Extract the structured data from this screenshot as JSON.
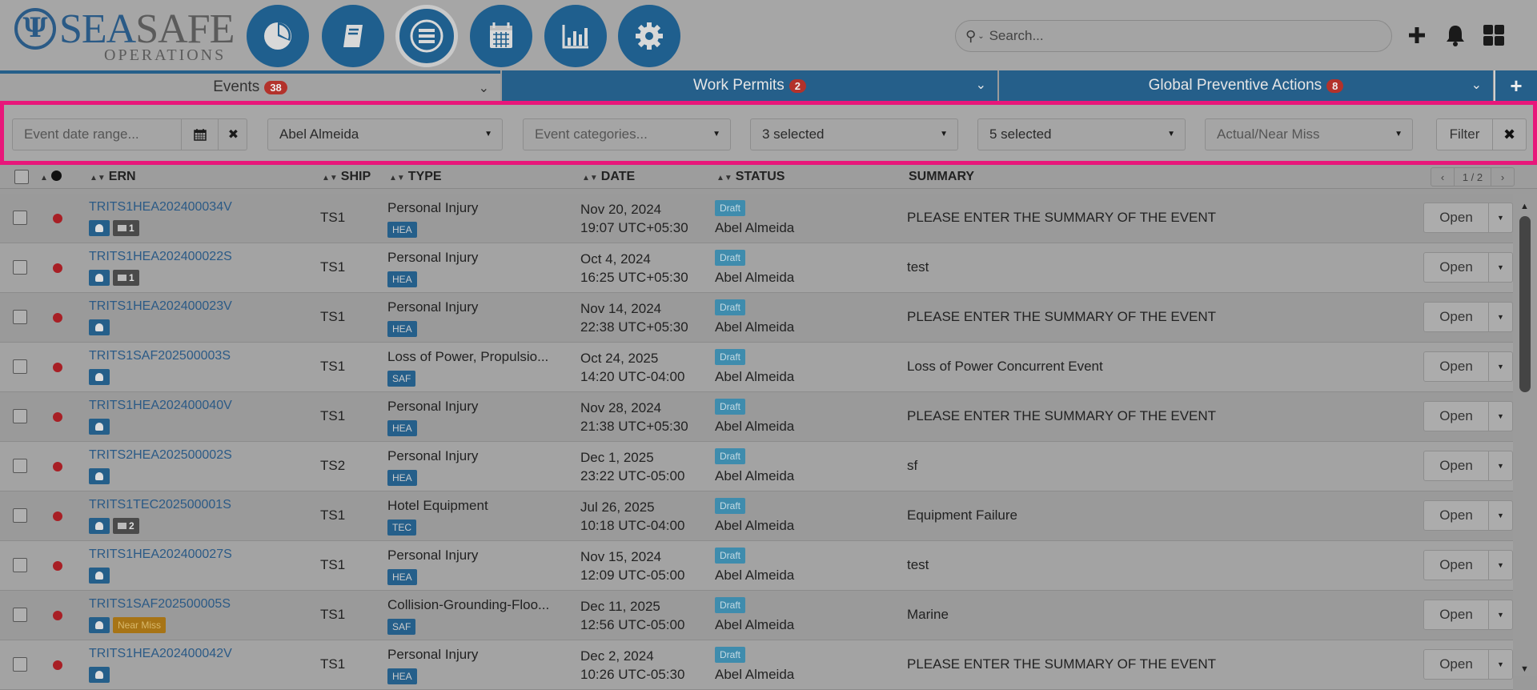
{
  "header": {
    "logo_main_a": "SEA",
    "logo_main_b": "SAFE",
    "logo_sub": "OPERATIONS",
    "logo_emblem": "Ψ",
    "nav_icons": [
      "dashboard-pie-icon",
      "book-icon",
      "list-menu-icon",
      "calendar-icon",
      "bar-chart-icon",
      "gear-icon"
    ],
    "search_placeholder": "Search...",
    "action_icons": [
      "plus-icon",
      "bell-icon",
      "grid-apps-icon"
    ]
  },
  "tabs": [
    {
      "label": "Events",
      "badge": "38"
    },
    {
      "label": "Work Permits",
      "badge": "2"
    },
    {
      "label": "Global Preventive Actions",
      "badge": "8"
    }
  ],
  "filters": {
    "date_range_placeholder": "Event date range...",
    "person": "Abel Almeida",
    "categories_placeholder": "Event categories...",
    "select_a": "3 selected",
    "select_b": "5 selected",
    "actual_near_miss_placeholder": "Actual/Near Miss",
    "filter_label": "Filter"
  },
  "table": {
    "headers": {
      "ern": "ERN",
      "ship": "SHIP",
      "type": "TYPE",
      "date": "DATE",
      "status": "STATUS",
      "summary": "SUMMARY"
    },
    "pager": "1 / 2",
    "open_label": "Open",
    "rows": [
      {
        "ern": "TRITS1HEA202400034V",
        "msg": "1",
        "near_miss": "",
        "ship": "TS1",
        "type": "Personal Injury",
        "cat": "HEA",
        "date1": "Nov 20, 2024",
        "date2": "19:07 UTC+05:30",
        "status": "Draft",
        "user": "Abel Almeida",
        "summary": "PLEASE ENTER THE SUMMARY OF THE EVENT"
      },
      {
        "ern": "TRITS1HEA202400022S",
        "msg": "1",
        "near_miss": "",
        "ship": "TS1",
        "type": "Personal Injury",
        "cat": "HEA",
        "date1": "Oct 4, 2024",
        "date2": "16:25 UTC+05:30",
        "status": "Draft",
        "user": "Abel Almeida",
        "summary": "test"
      },
      {
        "ern": "TRITS1HEA202400023V",
        "msg": "",
        "near_miss": "",
        "ship": "TS1",
        "type": "Personal Injury",
        "cat": "HEA",
        "date1": "Nov 14, 2024",
        "date2": "22:38 UTC+05:30",
        "status": "Draft",
        "user": "Abel Almeida",
        "summary": "PLEASE ENTER THE SUMMARY OF THE EVENT"
      },
      {
        "ern": "TRITS1SAF202500003S",
        "msg": "",
        "near_miss": "",
        "ship": "TS1",
        "type": "Loss of Power, Propulsio...",
        "cat": "SAF",
        "date1": "Oct 24, 2025",
        "date2": "14:20 UTC-04:00",
        "status": "Draft",
        "user": "Abel Almeida",
        "summary": "Loss of Power Concurrent Event"
      },
      {
        "ern": "TRITS1HEA202400040V",
        "msg": "",
        "near_miss": "",
        "ship": "TS1",
        "type": "Personal Injury",
        "cat": "HEA",
        "date1": "Nov 28, 2024",
        "date2": "21:38 UTC+05:30",
        "status": "Draft",
        "user": "Abel Almeida",
        "summary": "PLEASE ENTER THE SUMMARY OF THE EVENT"
      },
      {
        "ern": "TRITS2HEA202500002S",
        "msg": "",
        "near_miss": "",
        "ship": "TS2",
        "type": "Personal Injury",
        "cat": "HEA",
        "date1": "Dec 1, 2025",
        "date2": "23:22 UTC-05:00",
        "status": "Draft",
        "user": "Abel Almeida",
        "summary": "sf"
      },
      {
        "ern": "TRITS1TEC202500001S",
        "msg": "2",
        "near_miss": "",
        "ship": "TS1",
        "type": "Hotel Equipment",
        "cat": "TEC",
        "date1": "Jul 26, 2025",
        "date2": "10:18 UTC-04:00",
        "status": "Draft",
        "user": "Abel Almeida",
        "summary": "Equipment Failure"
      },
      {
        "ern": "TRITS1HEA202400027S",
        "msg": "",
        "near_miss": "",
        "ship": "TS1",
        "type": "Personal Injury",
        "cat": "HEA",
        "date1": "Nov 15, 2024",
        "date2": "12:09 UTC-05:00",
        "status": "Draft",
        "user": "Abel Almeida",
        "summary": "test"
      },
      {
        "ern": "TRITS1SAF202500005S",
        "msg": "",
        "near_miss": "Near Miss",
        "ship": "TS1",
        "type": "Collision-Grounding-Floo...",
        "cat": "SAF",
        "date1": "Dec 11, 2025",
        "date2": "12:56 UTC-05:00",
        "status": "Draft",
        "user": "Abel Almeida",
        "summary": "Marine"
      },
      {
        "ern": "TRITS1HEA202400042V",
        "msg": "",
        "near_miss": "",
        "ship": "TS1",
        "type": "Personal Injury",
        "cat": "HEA",
        "date1": "Dec 2, 2024",
        "date2": "10:26 UTC-05:30",
        "status": "Draft",
        "user": "Abel Almeida",
        "summary": "PLEASE ENTER THE SUMMARY OF THE EVENT"
      }
    ]
  }
}
